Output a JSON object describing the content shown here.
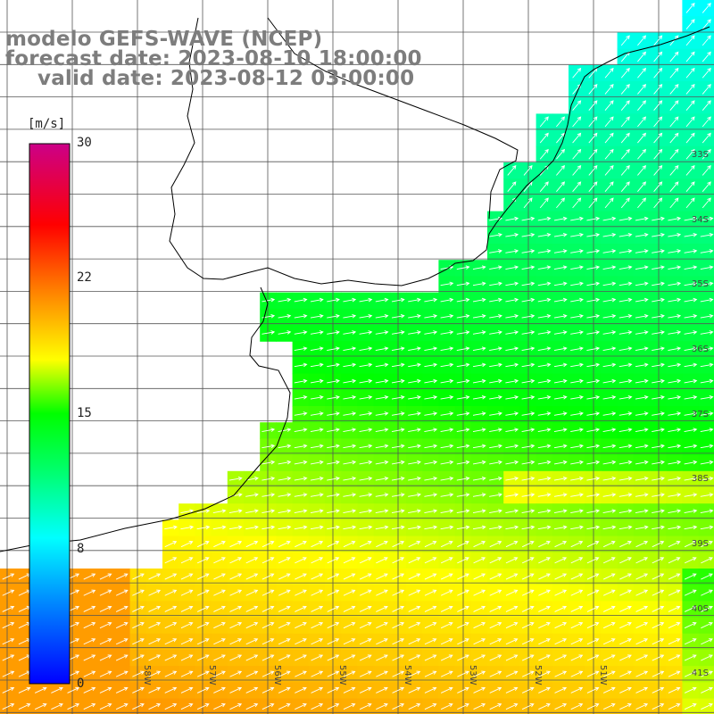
{
  "title": {
    "model": "modelo GEFS-WAVE (NCEP)",
    "forecast": "forecast date: 2023-08-10 18:00:00",
    "valid": "valid date: 2023-08-12 03:00:00"
  },
  "colorbar": {
    "unit": "[m/s]",
    "ticks": [
      "30",
      "22",
      "15",
      "8",
      "0"
    ],
    "tick_values": [
      30,
      22,
      15,
      8,
      0
    ],
    "colors": [
      "#0000ff",
      "#0088ff",
      "#00ffff",
      "#00ff00",
      "#ffff00",
      "#ff8800",
      "#ff0000",
      "#cc0088"
    ]
  },
  "lat_labels": [
    "33S",
    "34S",
    "35S",
    "36S",
    "37S",
    "38S",
    "39S",
    "40S",
    "41S"
  ],
  "lon_labels": [
    "58W",
    "57W",
    "56W",
    "55W",
    "54W",
    "53W",
    "52W",
    "51W"
  ],
  "colors": {
    "land": "#ffffff",
    "coast": "#000000",
    "grid": "#444444",
    "arrow": "#ffffff",
    "title": "#7d7d7d"
  }
}
